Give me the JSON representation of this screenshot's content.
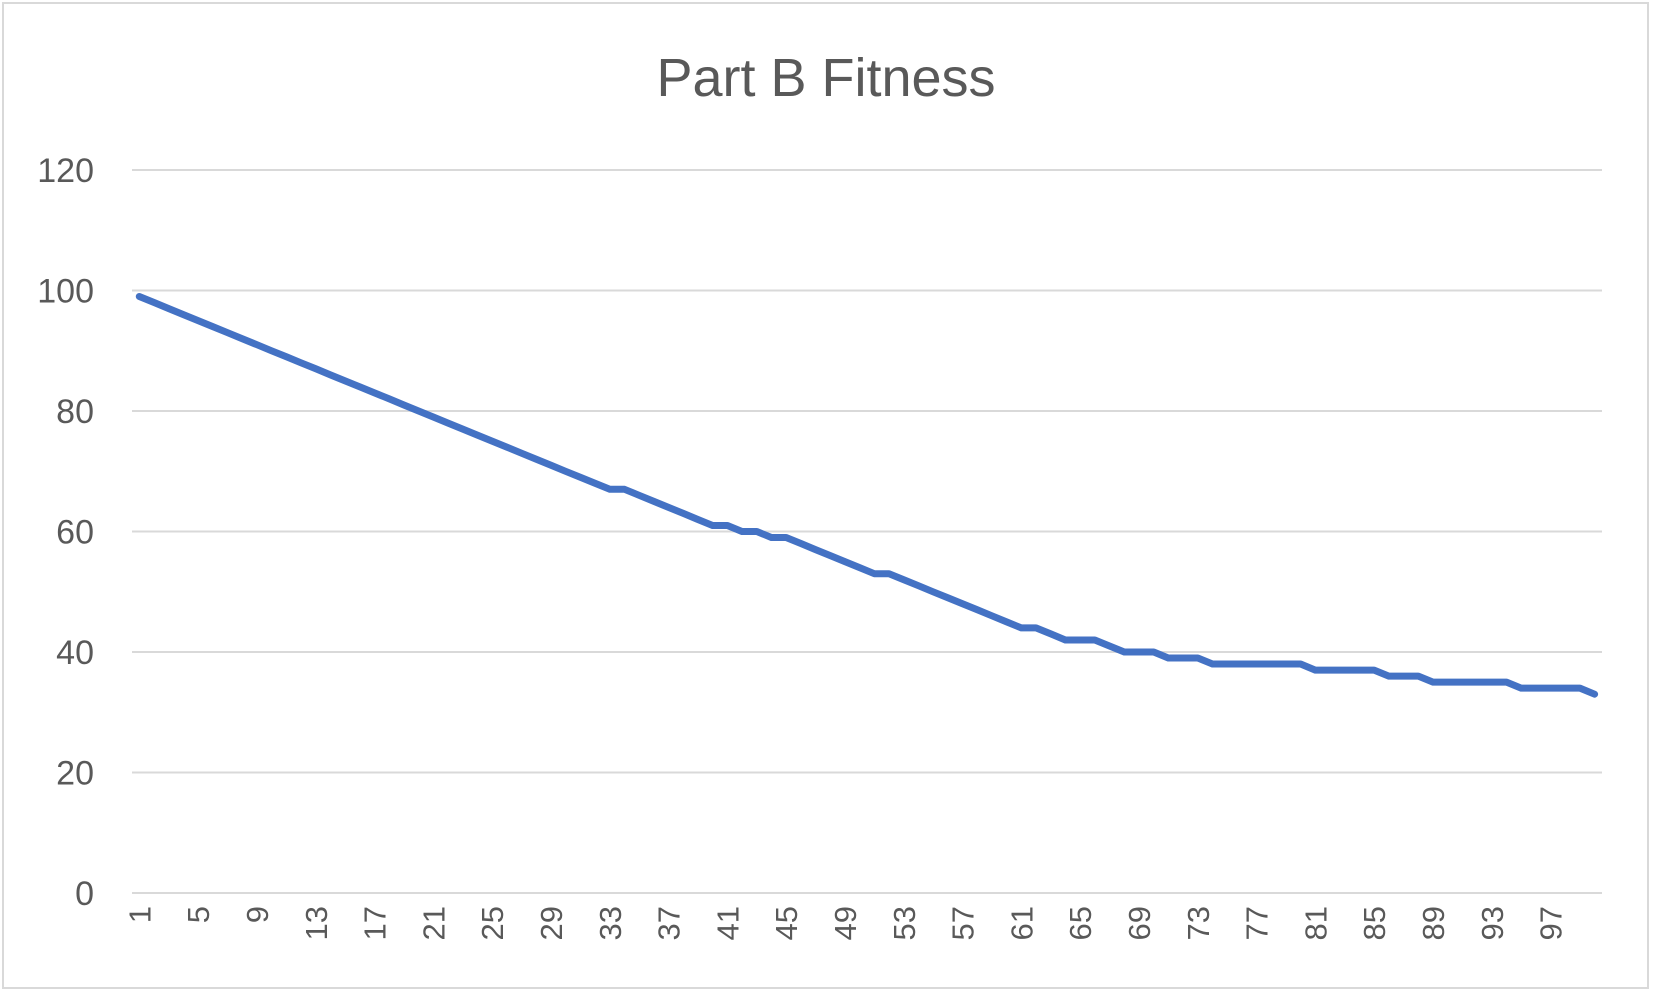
{
  "chart_data": {
    "type": "line",
    "title": "Part B Fitness",
    "xlabel": "",
    "ylabel": "",
    "x_start": 1,
    "x_end": 100,
    "xtick_labels": [
      "1",
      "5",
      "9",
      "13",
      "17",
      "21",
      "25",
      "29",
      "33",
      "37",
      "41",
      "45",
      "49",
      "53",
      "57",
      "61",
      "65",
      "69",
      "73",
      "77",
      "81",
      "85",
      "89",
      "93",
      "97"
    ],
    "ytick_labels": [
      "0",
      "20",
      "40",
      "60",
      "80",
      "100",
      "120"
    ],
    "ylim": [
      0,
      120
    ],
    "grid": true,
    "legend": "none",
    "series": [
      {
        "color": "#4472c4",
        "values": [
          99,
          98,
          97,
          96,
          95,
          94,
          93,
          92,
          91,
          90,
          89,
          88,
          87,
          86,
          85,
          84,
          83,
          82,
          81,
          80,
          79,
          78,
          77,
          76,
          75,
          74,
          73,
          72,
          71,
          70,
          69,
          68,
          67,
          67,
          66,
          65,
          64,
          63,
          62,
          61,
          61,
          60,
          60,
          59,
          59,
          58,
          57,
          56,
          55,
          54,
          53,
          53,
          52,
          51,
          50,
          49,
          48,
          47,
          46,
          45,
          44,
          44,
          43,
          42,
          42,
          42,
          41,
          40,
          40,
          40,
          39,
          39,
          39,
          38,
          38,
          38,
          38,
          38,
          38,
          38,
          37,
          37,
          37,
          37,
          37,
          36,
          36,
          36,
          35,
          35,
          35,
          35,
          35,
          35,
          34,
          34,
          34,
          34,
          34,
          33
        ]
      }
    ]
  }
}
